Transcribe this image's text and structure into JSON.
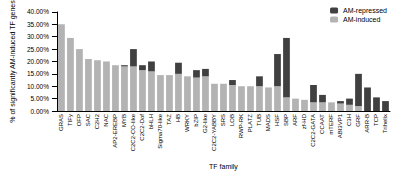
{
  "chart_data": {
    "type": "bar",
    "stacked": true,
    "grid": false,
    "legend": "top-right",
    "x_label": "TF family",
    "y_label": "% of significantly AM-induced TF genes",
    "categories": [
      "GRAS",
      "TIFy",
      "OFP",
      "SAC",
      "C2H2",
      "NAC",
      "AP2-EREBP",
      "MYB",
      "C2C2-CO-like",
      "C2C2-Dof",
      "bHLH",
      "Sigma70-like",
      "TAZ",
      "HB",
      "WRKY",
      "bZIP",
      "G2-like",
      "C2C2-YABBY",
      "SRS",
      "LOB",
      "RWP-RK",
      "PLATZ",
      "TUB",
      "MADS",
      "HSF",
      "SBP",
      "ARF",
      "zf-HD",
      "C2C2-GATA",
      "CCAAT",
      "mTERF",
      "ABI3VP1",
      "C3H",
      "GRF",
      "ARR-B",
      "TCP",
      "Trihelix"
    ],
    "series": [
      {
        "name": "AM-induced",
        "color": "#b3b3b3",
        "values": [
          35,
          29.5,
          25,
          21,
          20.5,
          20,
          18.5,
          18,
          18,
          16.5,
          16,
          14.5,
          14.5,
          15,
          14,
          13.5,
          14,
          11,
          11,
          10.5,
          10,
          10,
          10,
          9.5,
          10,
          5.5,
          5,
          4.5,
          3.5,
          3.5,
          3.5,
          3,
          2.5,
          2,
          0,
          0,
          0
        ]
      },
      {
        "name": "AM-repressed",
        "color": "#404040",
        "values": [
          0,
          0,
          0,
          0,
          0,
          0,
          0,
          0.5,
          7,
          2,
          4,
          0,
          0,
          4.5,
          0,
          3,
          3,
          0,
          0,
          2,
          0,
          0,
          4,
          0,
          13,
          24,
          0,
          0,
          7,
          3,
          0,
          1,
          2.5,
          13,
          9.5,
          5.5,
          4
        ]
      }
    ],
    "ylim": [
      0,
      40
    ],
    "yticks": [
      {
        "value": 0,
        "label": "0.00%"
      },
      {
        "value": 5,
        "label": "5.00%"
      },
      {
        "value": 10,
        "label": "10.00%"
      },
      {
        "value": 15,
        "label": "15.00%"
      },
      {
        "value": 20,
        "label": "20.00%"
      },
      {
        "value": 25,
        "label": "25.00%"
      },
      {
        "value": 30,
        "label": "30.00%"
      },
      {
        "value": 35,
        "label": "35.00%"
      },
      {
        "value": 40,
        "label": "40.00%"
      }
    ]
  }
}
